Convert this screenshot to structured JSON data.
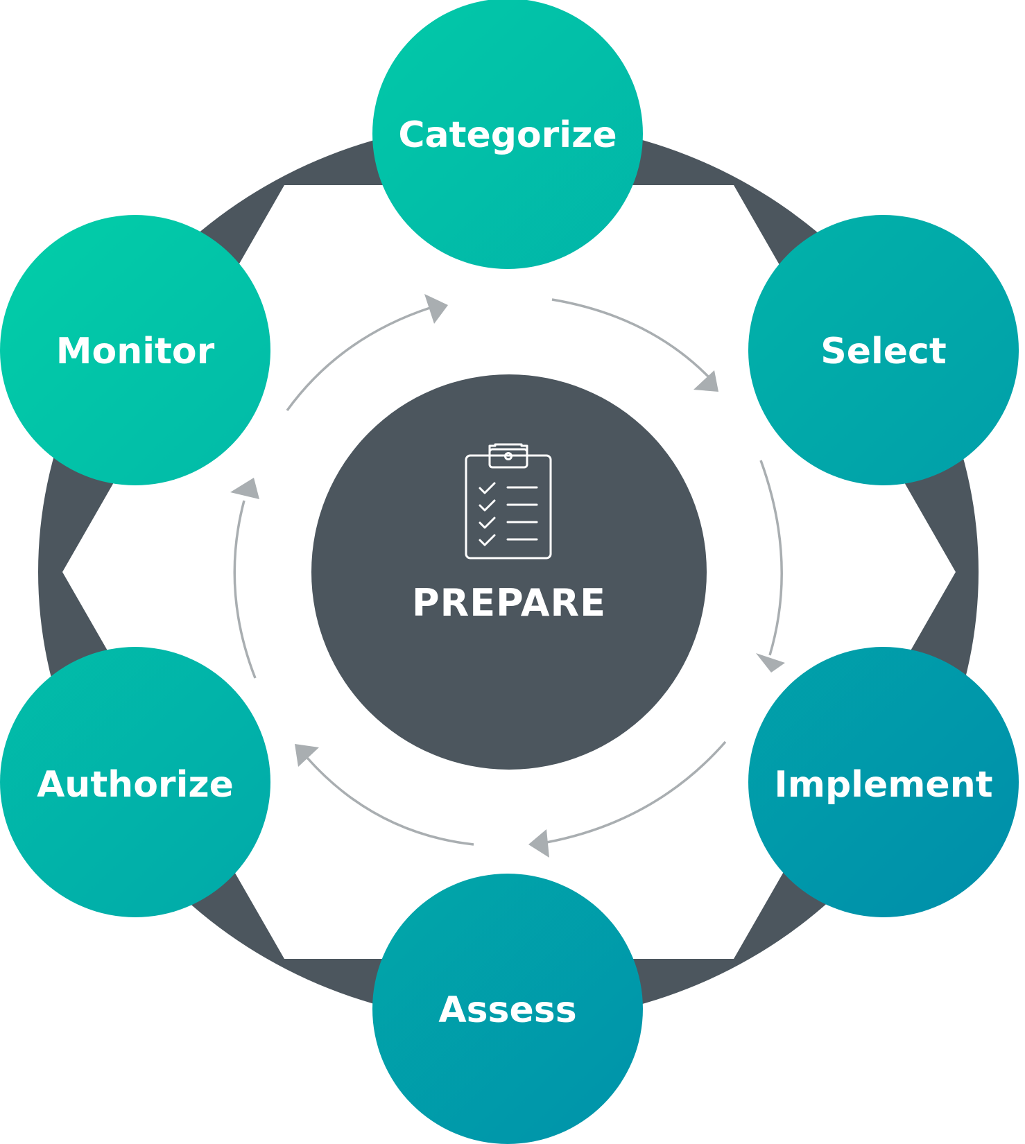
{
  "center": {
    "label": "PREPARE",
    "icon": "clipboard-checklist-icon"
  },
  "steps": [
    {
      "id": "categorize",
      "label": "Categorize"
    },
    {
      "id": "select",
      "label": "Select"
    },
    {
      "id": "implement",
      "label": "Implement"
    },
    {
      "id": "assess",
      "label": "Assess"
    },
    {
      "id": "authorize",
      "label": "Authorize"
    },
    {
      "id": "monitor",
      "label": "Monitor"
    }
  ],
  "colors": {
    "ring": "#4c565e",
    "center_fill": "#4c565e",
    "step_gradient_start": "#02cfa8",
    "step_gradient_end": "#0088aa",
    "arrow": "#a9aeb1",
    "text": "#ffffff"
  }
}
